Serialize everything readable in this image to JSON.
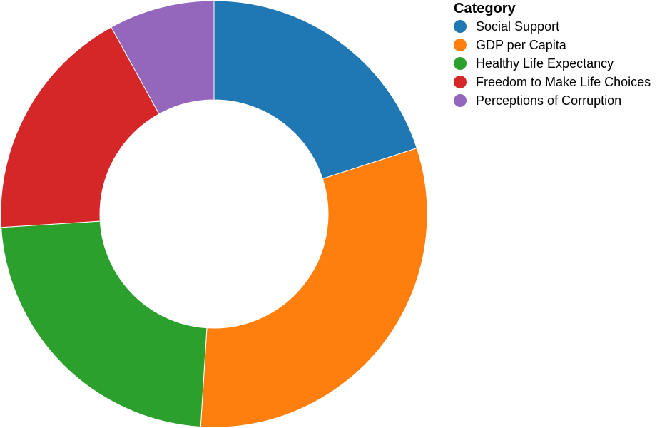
{
  "chart_data": {
    "type": "pie",
    "legend_title": "Category",
    "legend_position": "top-right",
    "categories": [
      "Social Support",
      "GDP per Capita",
      "Healthy Life Expectancy",
      "Freedom to Make Life Choices",
      "Perceptions of Corruption"
    ],
    "values": [
      0.2,
      0.31,
      0.23,
      0.18,
      0.08
    ],
    "colors": [
      "#1f77b4",
      "#ff7f0e",
      "#2ca02c",
      "#d62728",
      "#9467bd"
    ],
    "donut": true
  }
}
